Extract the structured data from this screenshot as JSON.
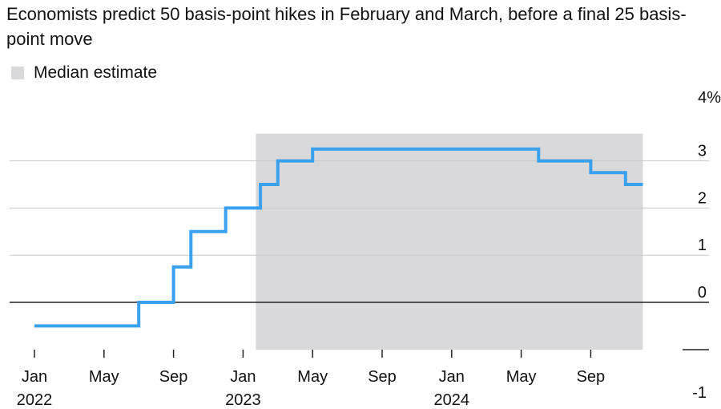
{
  "title": "Economists predict 50 basis-point hikes in February and March, before a final 25 basis-point move",
  "legend": {
    "label": "Median estimate",
    "color": "#d9d9dc"
  },
  "chart_data": {
    "type": "line",
    "line_shape": "step",
    "ylim": [
      -1,
      4
    ],
    "y_ticks": [
      {
        "value": 4,
        "label": "4%"
      },
      {
        "value": 3,
        "label": "3"
      },
      {
        "value": 2,
        "label": "2"
      },
      {
        "value": 1,
        "label": "1"
      },
      {
        "value": 0,
        "label": "0"
      },
      {
        "value": -1,
        "label": "-1"
      }
    ],
    "x_range": [
      "2022-01",
      "2024-12"
    ],
    "x_ticks": [
      {
        "date": "2022-01",
        "label": "Jan",
        "year": "2022"
      },
      {
        "date": "2022-05",
        "label": "May",
        "year": ""
      },
      {
        "date": "2022-09",
        "label": "Sep",
        "year": ""
      },
      {
        "date": "2023-01",
        "label": "Jan",
        "year": "2023"
      },
      {
        "date": "2023-05",
        "label": "May",
        "year": ""
      },
      {
        "date": "2023-09",
        "label": "Sep",
        "year": ""
      },
      {
        "date": "2024-01",
        "label": "Jan",
        "year": "2024"
      },
      {
        "date": "2024-05",
        "label": "May",
        "year": ""
      },
      {
        "date": "2024-09",
        "label": "Sep",
        "year": ""
      }
    ],
    "shaded_region": {
      "start": "2023-01",
      "end": "2024-12"
    },
    "series": [
      {
        "color": "#3aa0f0",
        "points": [
          {
            "date": "2022-01",
            "value": -0.5
          },
          {
            "date": "2022-07",
            "value": 0.0
          },
          {
            "date": "2022-09",
            "value": 0.75
          },
          {
            "date": "2022-10",
            "value": 1.5
          },
          {
            "date": "2022-12",
            "value": 2.0
          },
          {
            "date": "2023-02",
            "value": 2.5
          },
          {
            "date": "2023-03",
            "value": 3.0
          },
          {
            "date": "2023-05",
            "value": 3.25
          },
          {
            "date": "2024-06",
            "value": 3.0
          },
          {
            "date": "2024-09",
            "value": 2.75
          },
          {
            "date": "2024-11",
            "value": 2.5
          },
          {
            "date": "2024-12",
            "value": 2.5
          }
        ]
      }
    ],
    "grid": true
  }
}
